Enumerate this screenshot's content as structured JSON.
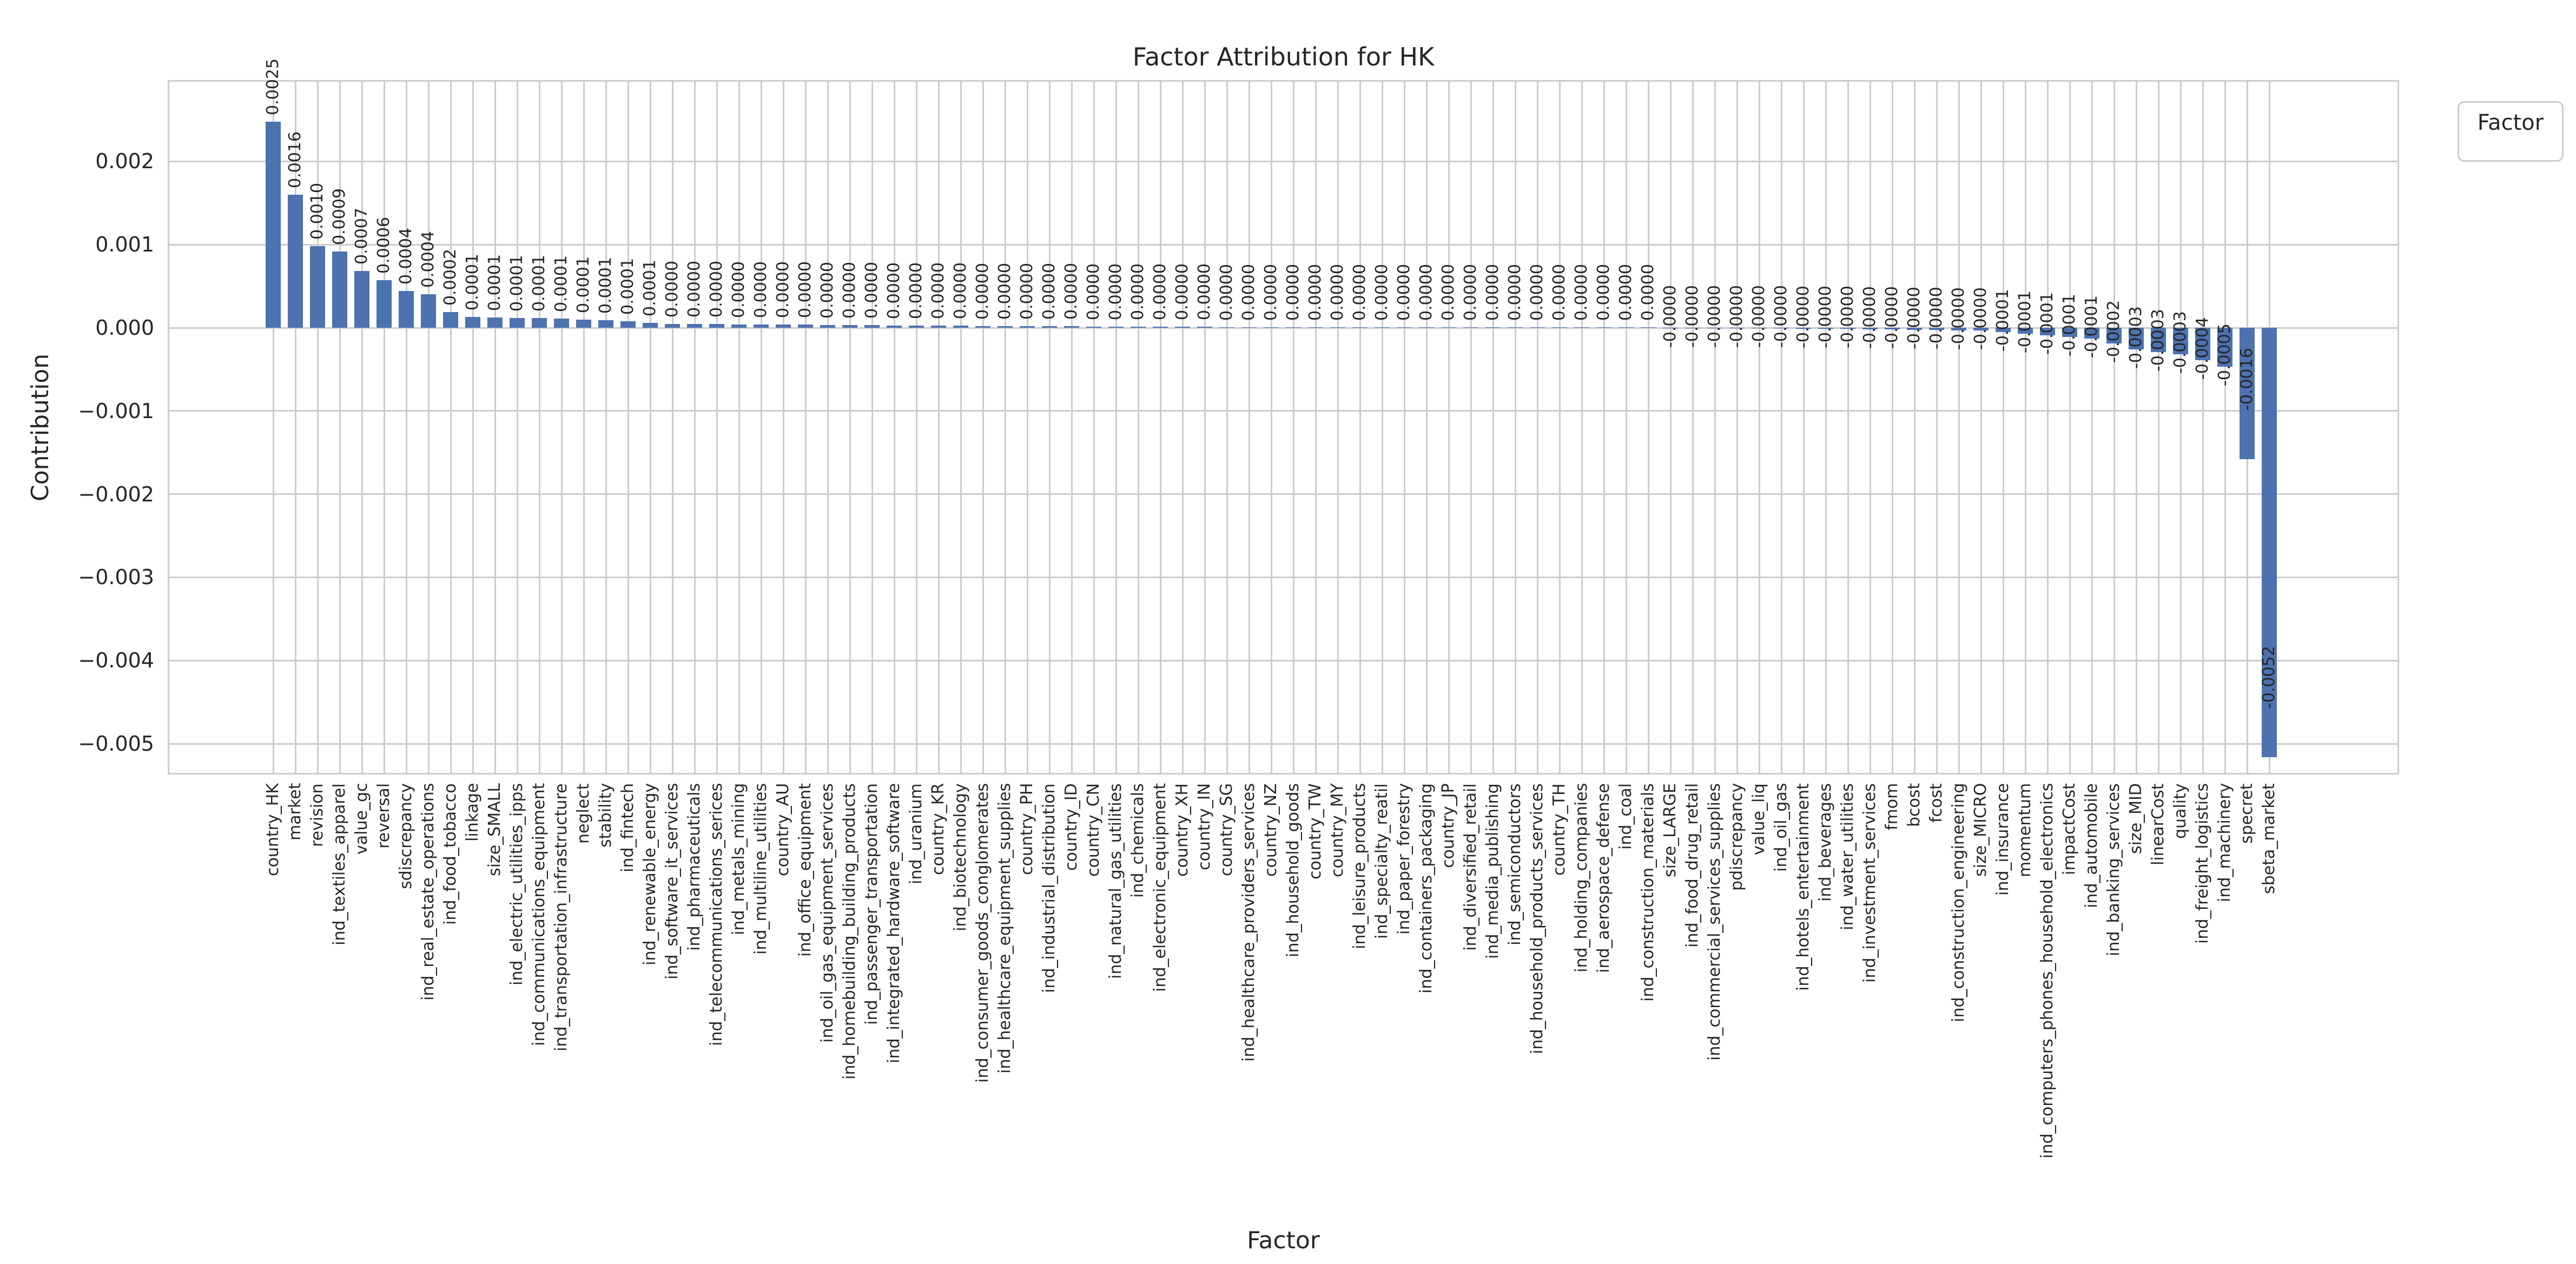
{
  "chart_data": {
    "type": "bar",
    "title": "Factor Attribution for HK",
    "xlabel": "Factor",
    "ylabel": "Contribution",
    "legend_title": "Factor",
    "bar_color": "#4C72B0",
    "grid_color": "#cccccc",
    "text_color": "#262626",
    "ylim": [
      -0.00537,
      0.00298
    ],
    "grid": "on",
    "legend_position": "upper right, outside axes",
    "yticks": [
      {
        "v": 0.002,
        "label": "0.002"
      },
      {
        "v": 0.001,
        "label": "0.001"
      },
      {
        "v": 0.0,
        "label": "0.000"
      },
      {
        "v": -0.001,
        "label": "−0.001"
      },
      {
        "v": -0.002,
        "label": "−0.002"
      },
      {
        "v": -0.003,
        "label": "−0.003"
      },
      {
        "v": -0.004,
        "label": "−0.004"
      },
      {
        "v": -0.005,
        "label": "−0.005"
      }
    ],
    "factors": [
      {
        "name": "country_HK",
        "value": 0.00248,
        "label": "0.0025"
      },
      {
        "name": "market",
        "value": 0.0016,
        "label": "0.0016"
      },
      {
        "name": "revision",
        "value": 0.00098,
        "label": "0.0010"
      },
      {
        "name": "ind_textiles_apparel",
        "value": 0.00092,
        "label": "0.0009"
      },
      {
        "name": "value_gc",
        "value": 0.00068,
        "label": "0.0007"
      },
      {
        "name": "reversal",
        "value": 0.00057,
        "label": "0.0006"
      },
      {
        "name": "sdiscrepancy",
        "value": 0.00044,
        "label": "0.0004"
      },
      {
        "name": "ind_real_estate_operations",
        "value": 0.0004,
        "label": "0.0004"
      },
      {
        "name": "ind_food_tobacco",
        "value": 0.00019,
        "label": "0.0002"
      },
      {
        "name": "linkage",
        "value": 0.00013,
        "label": "0.0001"
      },
      {
        "name": "size_SMALL",
        "value": 0.000125,
        "label": "0.0001"
      },
      {
        "name": "ind_electric_utilities_ipps",
        "value": 0.00012,
        "label": "0.0001"
      },
      {
        "name": "ind_communications_equipment",
        "value": 0.000115,
        "label": "0.0001"
      },
      {
        "name": "ind_transportation_infrastructure",
        "value": 0.00011,
        "label": "0.0001"
      },
      {
        "name": "neglect",
        "value": 0.0001,
        "label": "0.0001"
      },
      {
        "name": "stability",
        "value": 9e-05,
        "label": "0.0001"
      },
      {
        "name": "ind_fintech",
        "value": 8e-05,
        "label": "0.0001"
      },
      {
        "name": "ind_renewable_energy",
        "value": 6e-05,
        "label": "0.0001"
      },
      {
        "name": "ind_software_it_services",
        "value": 4.8e-05,
        "label": "0.0000"
      },
      {
        "name": "ind_pharmaceuticals",
        "value": 4.6e-05,
        "label": "0.0000"
      },
      {
        "name": "ind_telecommunications_serices",
        "value": 4.4e-05,
        "label": "0.0000"
      },
      {
        "name": "ind_metals_mining",
        "value": 4.2e-05,
        "label": "0.0000"
      },
      {
        "name": "ind_multiline_utilities",
        "value": 4e-05,
        "label": "0.0000"
      },
      {
        "name": "country_AU",
        "value": 3.8e-05,
        "label": "0.0000"
      },
      {
        "name": "ind_office_equipment",
        "value": 3.6e-05,
        "label": "0.0000"
      },
      {
        "name": "ind_oil_gas_equipment_services",
        "value": 3.4e-05,
        "label": "0.0000"
      },
      {
        "name": "ind_homebuilding_building_products",
        "value": 3.2e-05,
        "label": "0.0000"
      },
      {
        "name": "ind_passenger_transportation",
        "value": 3e-05,
        "label": "0.0000"
      },
      {
        "name": "ind_integrated_hardware_software",
        "value": 2.8e-05,
        "label": "0.0000"
      },
      {
        "name": "ind_uranium",
        "value": 2.7e-05,
        "label": "0.0000"
      },
      {
        "name": "country_KR",
        "value": 2.5e-05,
        "label": "0.0000"
      },
      {
        "name": "ind_biotechnology",
        "value": 2.4e-05,
        "label": "0.0000"
      },
      {
        "name": "ind_consumer_goods_conglomerates",
        "value": 2.2e-05,
        "label": "0.0000"
      },
      {
        "name": "ind_healthcare_equipment_supplies",
        "value": 2.1e-05,
        "label": "0.0000"
      },
      {
        "name": "country_PH",
        "value": 1.9e-05,
        "label": "0.0000"
      },
      {
        "name": "ind_industrial_distribution",
        "value": 1.8e-05,
        "label": "0.0000"
      },
      {
        "name": "country_ID",
        "value": 1.7e-05,
        "label": "0.0000"
      },
      {
        "name": "country_CN",
        "value": 1.6e-05,
        "label": "0.0000"
      },
      {
        "name": "ind_natural_gas_utilities",
        "value": 1.4e-05,
        "label": "0.0000"
      },
      {
        "name": "ind_chemicals",
        "value": 1.3e-05,
        "label": "0.0000"
      },
      {
        "name": "ind_electronic_equipment",
        "value": 1.2e-05,
        "label": "0.0000"
      },
      {
        "name": "country_XH",
        "value": 1.1e-05,
        "label": "0.0000"
      },
      {
        "name": "country_IN",
        "value": 1e-05,
        "label": "0.0000"
      },
      {
        "name": "country_SG",
        "value": 9e-06,
        "label": "0.0000"
      },
      {
        "name": "ind_healthcare_providers_services",
        "value": 8.5e-06,
        "label": "0.0000"
      },
      {
        "name": "country_NZ",
        "value": 8e-06,
        "label": "0.0000"
      },
      {
        "name": "ind_household_goods",
        "value": 7.5e-06,
        "label": "0.0000"
      },
      {
        "name": "country_TW",
        "value": 7e-06,
        "label": "0.0000"
      },
      {
        "name": "country_MY",
        "value": 6.5e-06,
        "label": "0.0000"
      },
      {
        "name": "ind_leisure_products",
        "value": 6e-06,
        "label": "0.0000"
      },
      {
        "name": "ind_specialty_reatil",
        "value": 5.5e-06,
        "label": "0.0000"
      },
      {
        "name": "ind_paper_forestry",
        "value": 5e-06,
        "label": "0.0000"
      },
      {
        "name": "ind_containers_packaging",
        "value": 4.5e-06,
        "label": "0.0000"
      },
      {
        "name": "country_JP",
        "value": 4e-06,
        "label": "0.0000"
      },
      {
        "name": "ind_diversified_retail",
        "value": 3.5e-06,
        "label": "0.0000"
      },
      {
        "name": "ind_media_publishing",
        "value": 3e-06,
        "label": "0.0000"
      },
      {
        "name": "ind_semiconductors",
        "value": 2.5e-06,
        "label": "0.0000"
      },
      {
        "name": "ind_household_products_services",
        "value": 2e-06,
        "label": "0.0000"
      },
      {
        "name": "country_TH",
        "value": 1.8e-06,
        "label": "0.0000"
      },
      {
        "name": "ind_holding_companies",
        "value": 1.5e-06,
        "label": "0.0000"
      },
      {
        "name": "ind_aerospace_defense",
        "value": 1.2e-06,
        "label": "0.0000"
      },
      {
        "name": "ind_coal",
        "value": 1e-06,
        "label": "0.0000"
      },
      {
        "name": "ind_construction_materials",
        "value": 5e-07,
        "label": "0.0000"
      },
      {
        "name": "size_LARGE",
        "value": -1e-06,
        "label": "-0.0000"
      },
      {
        "name": "ind_food_drug_retail",
        "value": -2e-06,
        "label": "-0.0000"
      },
      {
        "name": "ind_commercial_services_supplies",
        "value": -3e-06,
        "label": "-0.0000"
      },
      {
        "name": "pdiscrepancy",
        "value": -5e-06,
        "label": "-0.0000"
      },
      {
        "name": "value_liq",
        "value": -6e-06,
        "label": "-0.0000"
      },
      {
        "name": "ind_oil_gas",
        "value": -8e-06,
        "label": "-0.0000"
      },
      {
        "name": "ind_hotels_entertainment",
        "value": -1e-05,
        "label": "-0.0000"
      },
      {
        "name": "ind_beverages",
        "value": -1.2e-05,
        "label": "-0.0000"
      },
      {
        "name": "ind_water_utilities",
        "value": -1.4e-05,
        "label": "-0.0000"
      },
      {
        "name": "ind_investment_services",
        "value": -1.7e-05,
        "label": "-0.0000"
      },
      {
        "name": "fmom",
        "value": -2e-05,
        "label": "-0.0000"
      },
      {
        "name": "bcost",
        "value": -2.3e-05,
        "label": "-0.0000"
      },
      {
        "name": "fcost",
        "value": -2.6e-05,
        "label": "-0.0000"
      },
      {
        "name": "ind_construction_engineering",
        "value": -3e-05,
        "label": "-0.0000"
      },
      {
        "name": "size_MICRO",
        "value": -3.5e-05,
        "label": "-0.0000"
      },
      {
        "name": "ind_insurance",
        "value": -5.5e-05,
        "label": "-0.0001"
      },
      {
        "name": "momentum",
        "value": -7e-05,
        "label": "-0.0001"
      },
      {
        "name": "ind_computers_phones_household_electronics",
        "value": -9e-05,
        "label": "-0.0001"
      },
      {
        "name": "impactCost",
        "value": -0.00011,
        "label": "-0.0001"
      },
      {
        "name": "ind_automobile",
        "value": -0.00013,
        "label": "-0.0001"
      },
      {
        "name": "ind_banking_services",
        "value": -0.00019,
        "label": "-0.0002"
      },
      {
        "name": "size_MID",
        "value": -0.00026,
        "label": "-0.0003"
      },
      {
        "name": "linearCost",
        "value": -0.00029,
        "label": "-0.0003"
      },
      {
        "name": "quality",
        "value": -0.00032,
        "label": "-0.0003"
      },
      {
        "name": "ind_freight_logistics",
        "value": -0.00039,
        "label": "-0.0004"
      },
      {
        "name": "ind_machinery",
        "value": -0.00047,
        "label": "-0.0005"
      },
      {
        "name": "specret",
        "value": -0.00158,
        "label": "-0.0016"
      },
      {
        "name": "sbeta_market",
        "value": -0.00516,
        "label": "-0.0052"
      }
    ]
  }
}
